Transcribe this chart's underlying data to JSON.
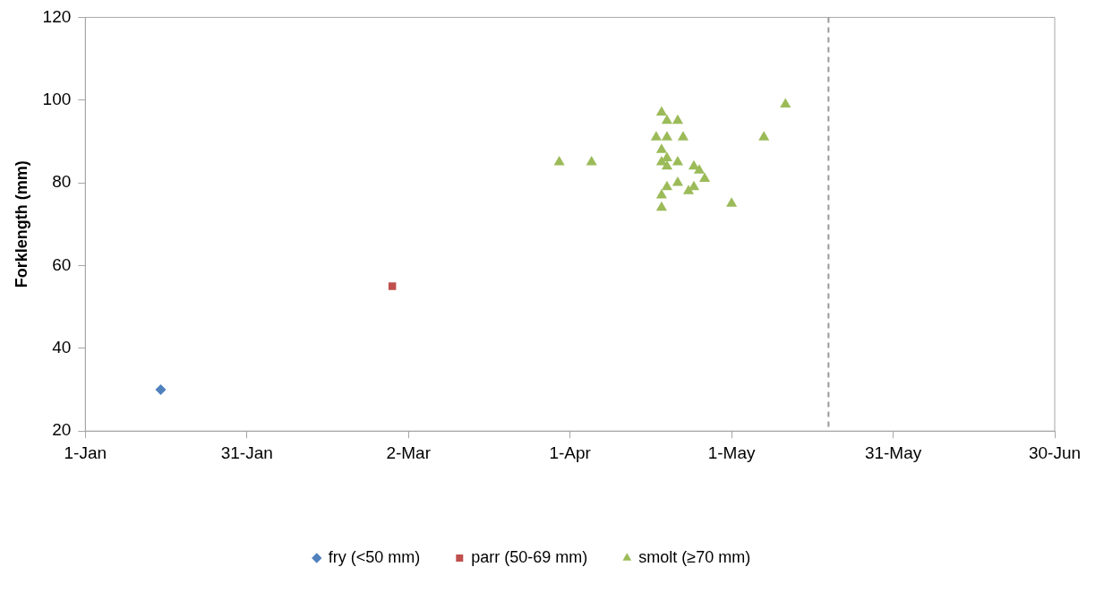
{
  "chart_data": {
    "type": "scatter",
    "ylabel": "Forklength (mm)",
    "xlim": [
      "--01-01",
      "--06-30"
    ],
    "xticks": [
      {
        "value": "--01-01",
        "label": "1-Jan"
      },
      {
        "value": "--01-31",
        "label": "31-Jan"
      },
      {
        "value": "--03-02",
        "label": "2-Mar"
      },
      {
        "value": "--04-01",
        "label": "1-Apr"
      },
      {
        "value": "--05-01",
        "label": "1-May"
      },
      {
        "value": "--05-31",
        "label": "31-May"
      },
      {
        "value": "--06-30",
        "label": "30-Jun"
      }
    ],
    "ylim": [
      20,
      120
    ],
    "yticks": [
      20,
      40,
      60,
      80,
      100,
      120
    ],
    "grid": false,
    "legend": "bottom",
    "ref_lines": [
      {
        "axis": "x",
        "value": "--05-19",
        "color": "#999999",
        "line_style": "dashed"
      }
    ],
    "series": [
      {
        "name": "fry (<50 mm)",
        "color": "#4f81bd",
        "marker": "diamond",
        "x": [
          "--01-15"
        ],
        "values": [
          30
        ]
      },
      {
        "name": "parr (50-69 mm)",
        "color": "#c0504d",
        "marker": "square",
        "x": [
          "--02-27"
        ],
        "values": [
          55
        ]
      },
      {
        "name": "smolt (≥70 mm)",
        "color": "#9bbb59",
        "marker": "triangle",
        "x": [
          "--03-30",
          "--04-05",
          "--04-17",
          "--04-18",
          "--04-19",
          "--04-21",
          "--04-19",
          "--04-22",
          "--04-18",
          "--04-19",
          "--04-18",
          "--04-19",
          "--04-21",
          "--04-24",
          "--04-25",
          "--04-26",
          "--04-21",
          "--04-23",
          "--04-24",
          "--04-19",
          "--04-18",
          "--04-18",
          "--05-01",
          "--05-07",
          "--05-11"
        ],
        "values": [
          85,
          85,
          91,
          97,
          95,
          95,
          91,
          91,
          88,
          86,
          85,
          84,
          85,
          84,
          83,
          81,
          80,
          78,
          79,
          79,
          77,
          74,
          75,
          91,
          99
        ]
      }
    ]
  }
}
